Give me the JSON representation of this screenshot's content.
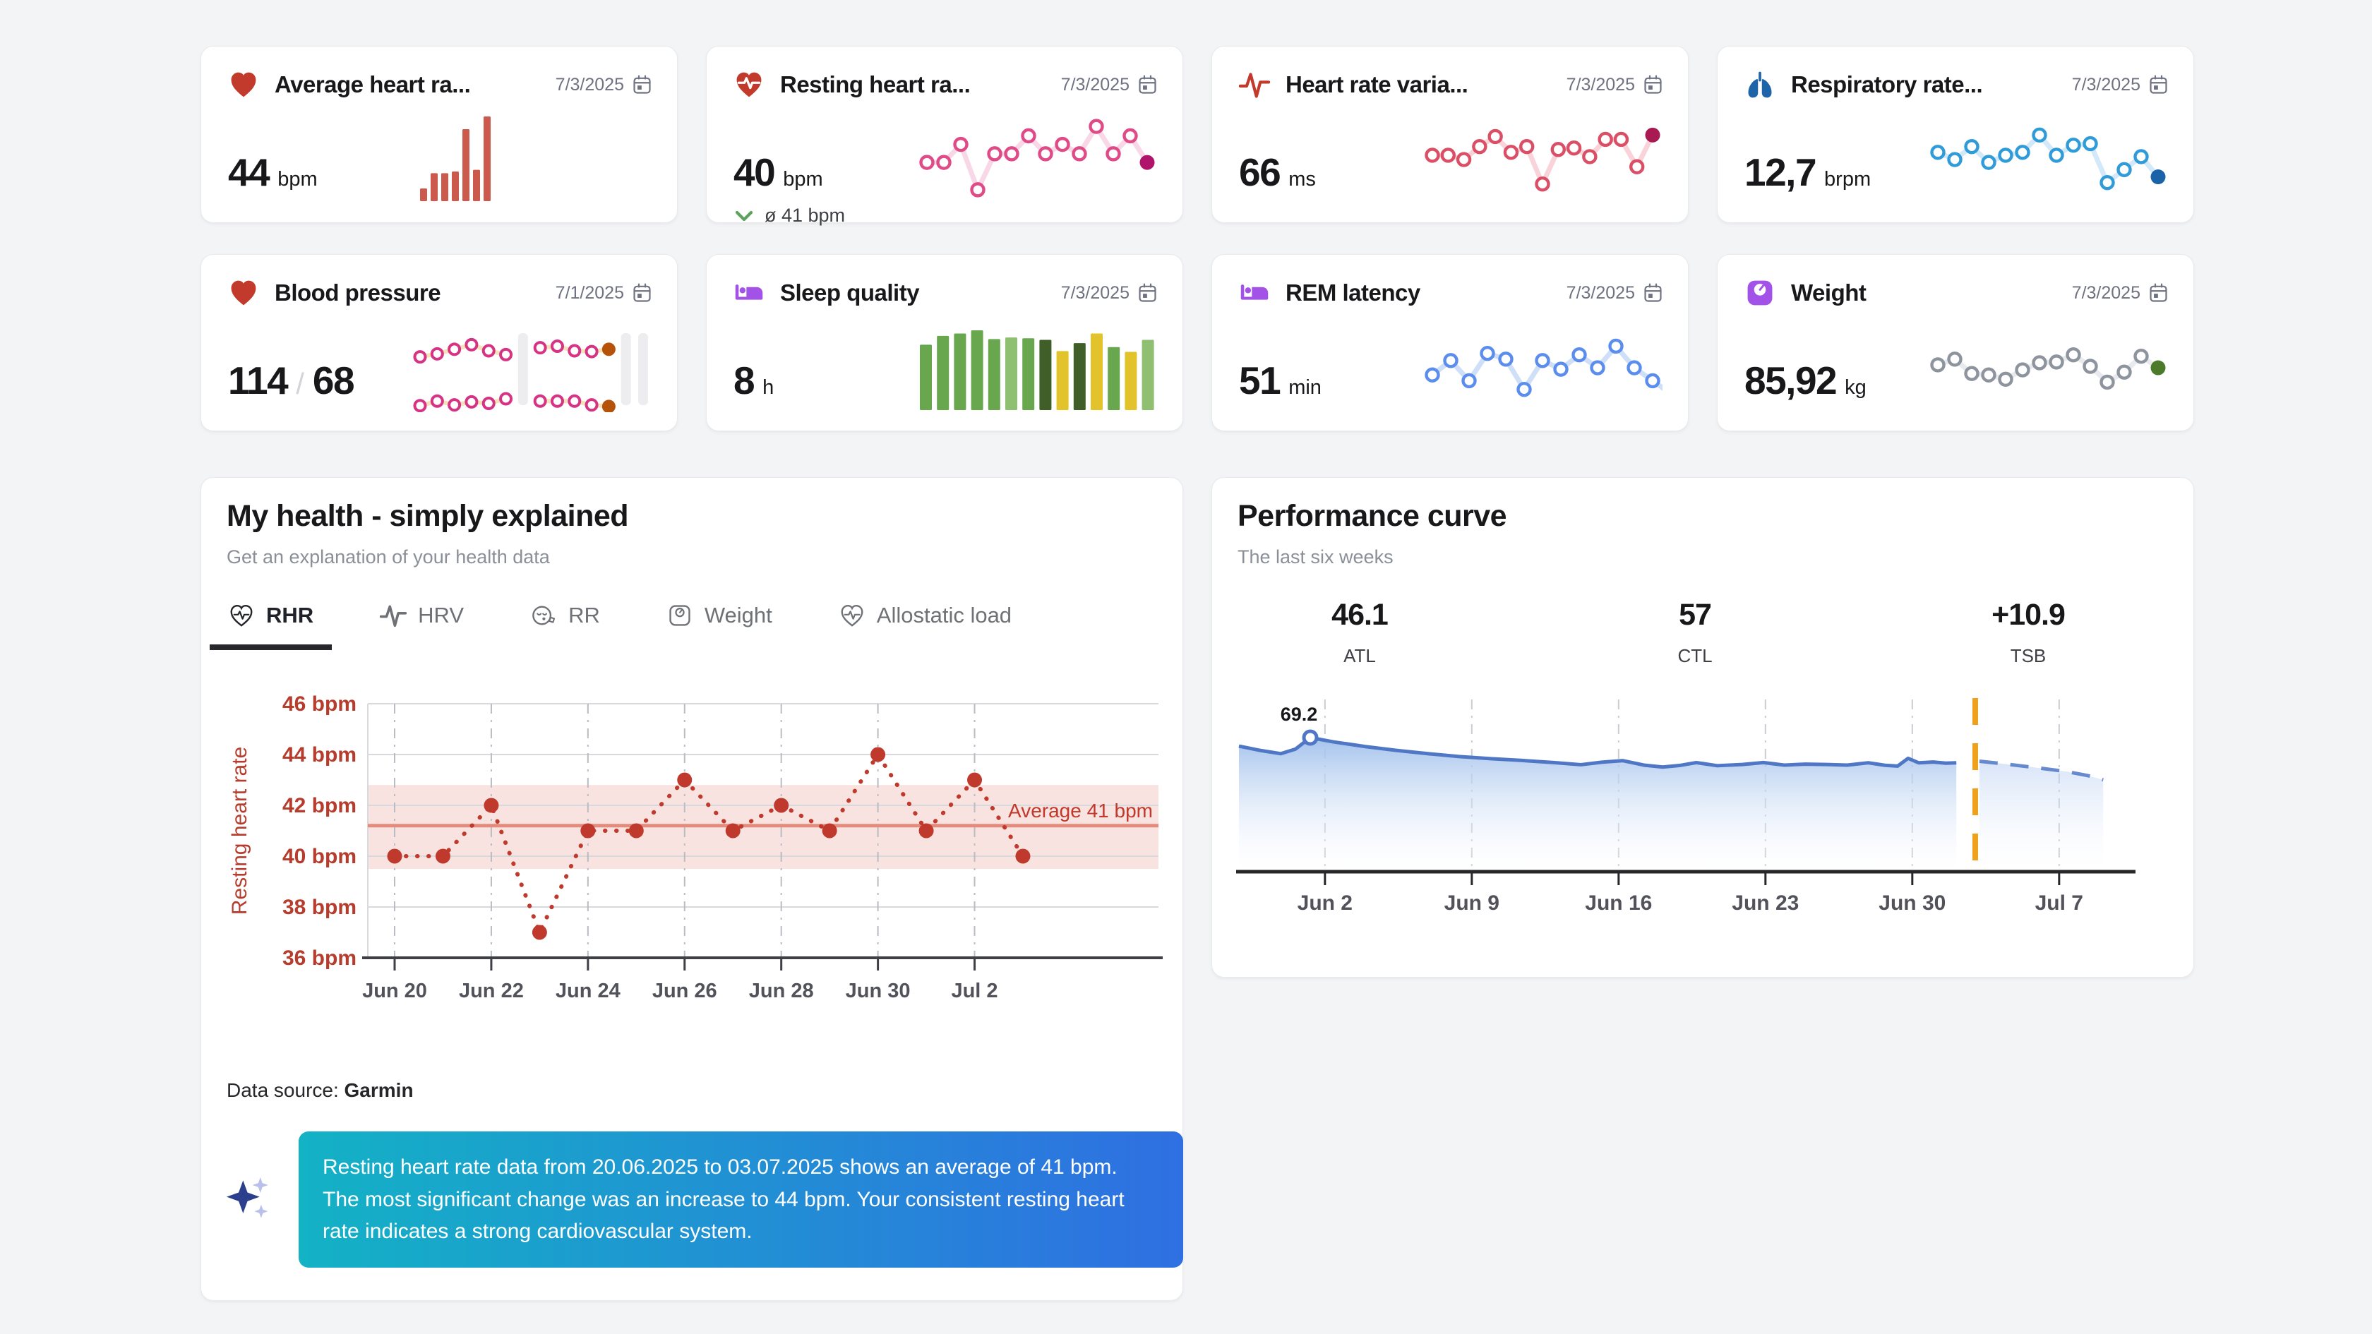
{
  "page": {
    "background": "#f3f4f6",
    "card_background": "#ffffff"
  },
  "cards": [
    {
      "id": "average-heart-rate",
      "icon": "heart",
      "icon_color": "#c23a2b",
      "title": "Average heart ra...",
      "date": "7/3/2025",
      "value": "44",
      "unit": "bpm",
      "spark": {
        "type": "bars",
        "color": "#cb5a4c",
        "values": [
          15,
          33,
          33,
          35,
          85,
          37,
          100
        ]
      }
    },
    {
      "id": "resting-heart-rate",
      "icon": "heart-pulse",
      "icon_color": "#c23a2b",
      "title": "Resting heart ra...",
      "date": "7/3/2025",
      "value": "40",
      "unit": "bpm",
      "delta": {
        "icon": "chevron-down",
        "color": "#5da25c",
        "text": "ø 41 bpm"
      },
      "spark": {
        "type": "line",
        "stroke": "#f8d7e6",
        "marker": "#e04a86",
        "last_fill": "#b0136b",
        "values": [
          44,
          44,
          69,
          6,
          56,
          56,
          81,
          56,
          69,
          56,
          94,
          56,
          81,
          44
        ]
      }
    },
    {
      "id": "heart-rate-variability",
      "icon": "pulse",
      "icon_color": "#c23a2b",
      "title": "Heart rate varia...",
      "date": "7/3/2025",
      "value": "66",
      "unit": "ms",
      "spark": {
        "type": "line",
        "stroke": "#f9d3da",
        "marker": "#da4f66",
        "last_fill": "#a81a51",
        "values": [
          54,
          54,
          48,
          66,
          80,
          58,
          66,
          14,
          62,
          64,
          52,
          76,
          76,
          38,
          82
        ]
      }
    },
    {
      "id": "respiratory-rate",
      "icon": "lungs",
      "icon_color": "#1d64a9",
      "title": "Respiratory rate...",
      "date": "7/3/2025",
      "value": "12,7",
      "unit": "brpm",
      "spark": {
        "type": "line",
        "stroke": "#d3e8f8",
        "marker": "#2f9bd8",
        "last_fill": "#1a63a8",
        "values": [
          58,
          48,
          66,
          44,
          54,
          58,
          82,
          54,
          68,
          70,
          16,
          34,
          52,
          24
        ]
      }
    },
    {
      "id": "blood-pressure",
      "icon": "heart",
      "icon_color": "#c23a2b",
      "title": "Blood pressure",
      "date": "7/1/2025",
      "value": "114",
      "value2": "68",
      "spark": {
        "type": "bp",
        "line": "#f6e2b8",
        "marker": "#d63384",
        "last_fill": "#b45309",
        "bar": "#ededef",
        "systolic": [
          34,
          42,
          54,
          66,
          50,
          40,
          null,
          58,
          62,
          50,
          48,
          54,
          null,
          null
        ],
        "diastolic": [
          6,
          18,
          8,
          16,
          12,
          24,
          null,
          18,
          18,
          18,
          8,
          4,
          null,
          null
        ]
      }
    },
    {
      "id": "sleep-quality",
      "icon": "bed",
      "icon_color": "#a352e8",
      "title": "Sleep quality",
      "date": "7/3/2025",
      "value": "8",
      "unit": "h",
      "spark": {
        "type": "bars-multi",
        "values": [
          82,
          93,
          96,
          100,
          89,
          91,
          90,
          88,
          74,
          84,
          96,
          79,
          73,
          88
        ],
        "palette": {
          "g": "#69a74e",
          "l": "#8fbf70",
          "d": "#3f5e28",
          "y": "#e3c32b"
        },
        "bar_colors": [
          "g",
          "g",
          "g",
          "g",
          "g",
          "l",
          "g",
          "d",
          "y",
          "d",
          "y",
          "g",
          "y",
          "l"
        ]
      }
    },
    {
      "id": "rem-latency",
      "icon": "bed",
      "icon_color": "#a352e8",
      "title": "REM latency",
      "date": "7/3/2025",
      "value": "51",
      "unit": "min",
      "spark": {
        "type": "line",
        "stroke": "#cfdff7",
        "marker": "#5b8def",
        "tail": true,
        "values": [
          38,
          58,
          30,
          68,
          60,
          18,
          58,
          46,
          66,
          48,
          78,
          48,
          30
        ]
      }
    },
    {
      "id": "weight",
      "icon": "scale",
      "icon_color": "#a352e8",
      "title": "Weight",
      "date": "7/3/2025",
      "value": "85,92",
      "unit": "kg",
      "spark": {
        "type": "line",
        "stroke": "#e8eaee",
        "marker": "#8e949e",
        "last_fill": "#4b7b2a",
        "values": [
          52,
          60,
          40,
          38,
          32,
          45,
          55,
          56,
          66,
          50,
          28,
          42,
          64,
          48
        ]
      }
    }
  ],
  "health_panel": {
    "title": "My health - simply explained",
    "subtitle": "Get an explanation of your health data",
    "tabs": [
      {
        "label": "RHR",
        "icon": "heart-outline",
        "active": true
      },
      {
        "label": "HRV",
        "icon": "pulse",
        "active": false
      },
      {
        "label": "RR",
        "icon": "breath-face",
        "active": false
      },
      {
        "label": "Weight",
        "icon": "scale-outline",
        "active": false
      },
      {
        "label": "Allostatic load",
        "icon": "heart-outline",
        "active": false
      }
    ],
    "data_source_label": "Data source:",
    "data_source_value": "Garmin",
    "ai_summary": "Resting heart rate data from 20.06.2025 to 03.07.2025 shows an average of 41 bpm. The most significant change was an increase to 44 bpm. Your consistent resting heart rate indicates a strong cardiovascular system."
  },
  "performance_panel": {
    "title": "Performance curve",
    "subtitle": "The last six weeks",
    "stats": [
      {
        "value": "46.1",
        "label": "ATL"
      },
      {
        "value": "57",
        "label": "CTL"
      },
      {
        "value": "+10.9",
        "label": "TSB"
      }
    ]
  },
  "chart_data": [
    {
      "id": "rhr_daily",
      "type": "line",
      "title": "Resting heart rate by day",
      "ylabel": "Resting heart rate",
      "unit": "bpm",
      "ylim": [
        36,
        46
      ],
      "yticks": [
        46,
        44,
        42,
        40,
        38,
        36
      ],
      "ytick_suffix": " bpm",
      "xticks": [
        "Jun 20",
        "Jun 22",
        "Jun 24",
        "Jun 26",
        "Jun 28",
        "Jun 30",
        "Jul 2"
      ],
      "dates": [
        "Jun 20",
        "Jun 21",
        "Jun 22",
        "Jun 23",
        "Jun 24",
        "Jun 25",
        "Jun 26",
        "Jun 27",
        "Jun 28",
        "Jun 29",
        "Jun 30",
        "Jul 1",
        "Jul 2",
        "Jul 3"
      ],
      "values": [
        40,
        40,
        42,
        37,
        41,
        41,
        43,
        41,
        42,
        41,
        44,
        41,
        43,
        40
      ],
      "average": 41.2,
      "average_label": "Average 41 bpm",
      "band": [
        39.5,
        42.8
      ],
      "grid": true,
      "colors": {
        "point": "#bf3a2c",
        "band": "#f9e3e0",
        "avg": "#e38b7d",
        "axis_label": "#b63d2e",
        "xaxis": "#3f3f46"
      }
    },
    {
      "id": "performance",
      "type": "area",
      "title": "Performance curve (CTL fitness)",
      "legend_position": "none",
      "xticks": [
        {
          "label": "Jun 2",
          "day": 4.1
        },
        {
          "label": "Jun 9",
          "day": 11.1
        },
        {
          "label": "Jun 16",
          "day": 18.1
        },
        {
          "label": "Jun 23",
          "day": 25.1
        },
        {
          "label": "Jun 30",
          "day": 32.1
        },
        {
          "label": "Jul 7",
          "day": 39.1
        }
      ],
      "today_day": 35.1,
      "solid": [
        [
          0,
          64.8
        ],
        [
          1,
          62.6
        ],
        [
          2,
          60.9
        ],
        [
          2.7,
          63.3
        ],
        [
          3.4,
          69.2
        ],
        [
          4.5,
          67.0
        ],
        [
          6,
          64.6
        ],
        [
          7.5,
          62.6
        ],
        [
          9,
          60.9
        ],
        [
          10.5,
          59.4
        ],
        [
          12,
          58.3
        ],
        [
          13.5,
          57.4
        ],
        [
          15,
          56.3
        ],
        [
          16.3,
          55.2
        ],
        [
          17.3,
          56.5
        ],
        [
          18.3,
          57.3
        ],
        [
          19.3,
          55.0
        ],
        [
          20.2,
          54.0
        ],
        [
          21,
          54.8
        ],
        [
          21.8,
          56.3
        ],
        [
          22.8,
          54.7
        ],
        [
          24,
          55.3
        ],
        [
          25,
          56.3
        ],
        [
          26,
          55.0
        ],
        [
          27,
          55.5
        ],
        [
          28,
          55.3
        ],
        [
          29,
          55.0
        ],
        [
          30,
          56.2
        ],
        [
          30.8,
          54.9
        ],
        [
          31.4,
          54.5
        ],
        [
          31.9,
          58.5
        ],
        [
          32.4,
          56.2
        ],
        [
          33.1,
          56.6
        ],
        [
          33.7,
          56.0
        ],
        [
          34.2,
          56.2
        ]
      ],
      "projection": [
        [
          35.3,
          57.0
        ],
        [
          36.5,
          55.6
        ],
        [
          38,
          53.7
        ],
        [
          39.5,
          51.6
        ],
        [
          40.5,
          49.5
        ],
        [
          41.2,
          47.4
        ]
      ],
      "annotation": {
        "label": "69.2",
        "day": 3.4,
        "value": 69.2
      },
      "colors": {
        "line": "#4f77c6",
        "today": "#f0a11c"
      }
    }
  ]
}
